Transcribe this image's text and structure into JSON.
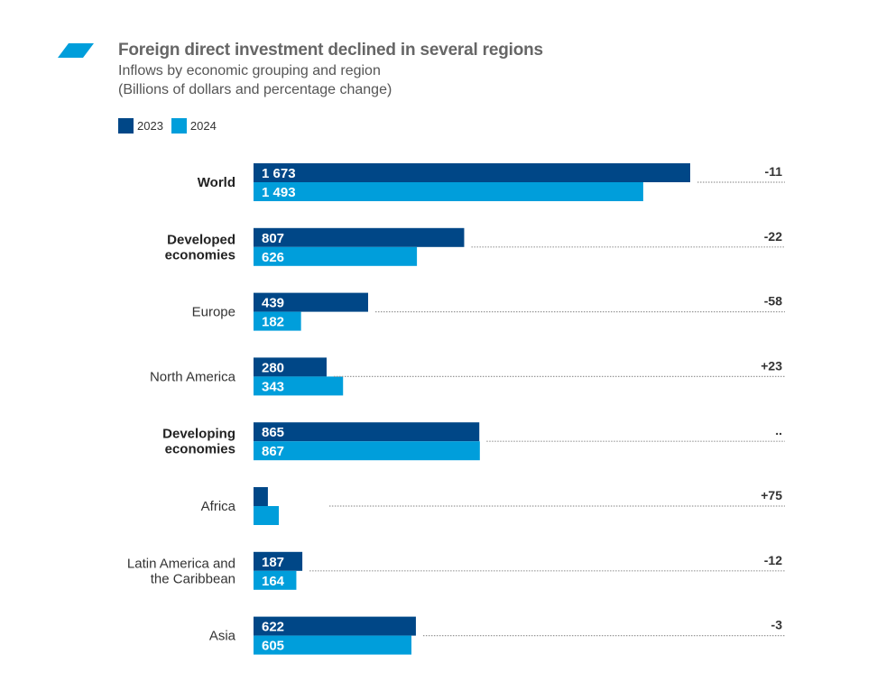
{
  "header": {
    "logo_icon": "slanted-parallelogram-icon",
    "title": "Foreign direct investment declined in several regions",
    "subtitle": "Inflows by economic grouping and region",
    "units": "(Billions of dollars and percentage change)"
  },
  "colors": {
    "series_2023": "#004787",
    "series_2024": "#009EDB",
    "logo": "#009EDB",
    "text": "#333333"
  },
  "chart_data": {
    "type": "bar",
    "orientation": "horizontal",
    "title": "Foreign direct investment declined in several regions",
    "subtitle": "Inflows by economic grouping and region",
    "units": "(Billions of dollars and percentage change)",
    "legend_position": "top-left",
    "grid": false,
    "xlim": [
      0,
      1673
    ],
    "categories": [
      "World",
      "Developed economies",
      "Europe",
      "North America",
      "Developing economies",
      "Africa",
      "Latin America and the Caribbean",
      "Asia"
    ],
    "category_lines": [
      [
        "World"
      ],
      [
        "Developed",
        "economies"
      ],
      [
        "Europe"
      ],
      [
        "North America"
      ],
      [
        "Developing",
        "economies"
      ],
      [
        "Africa"
      ],
      [
        "Latin America and",
        "the Caribbean"
      ],
      [
        "Asia"
      ]
    ],
    "category_bold": [
      true,
      true,
      false,
      false,
      true,
      false,
      false,
      false
    ],
    "series": [
      {
        "name": "2023",
        "values": [
          1673,
          807,
          439,
          280,
          865,
          55,
          187,
          622
        ],
        "labels": [
          "1 673",
          "807",
          "439",
          "280",
          "865",
          "55",
          "187",
          "622"
        ]
      },
      {
        "name": "2024",
        "values": [
          1493,
          626,
          182,
          343,
          867,
          97,
          164,
          605
        ],
        "labels": [
          "1 493",
          "626",
          "182",
          "343",
          "867",
          "97",
          "164",
          "605"
        ]
      }
    ],
    "percentage_change": [
      "-11",
      "-22",
      "-58",
      "+23",
      "..",
      "+75",
      "-12",
      "-3"
    ]
  }
}
